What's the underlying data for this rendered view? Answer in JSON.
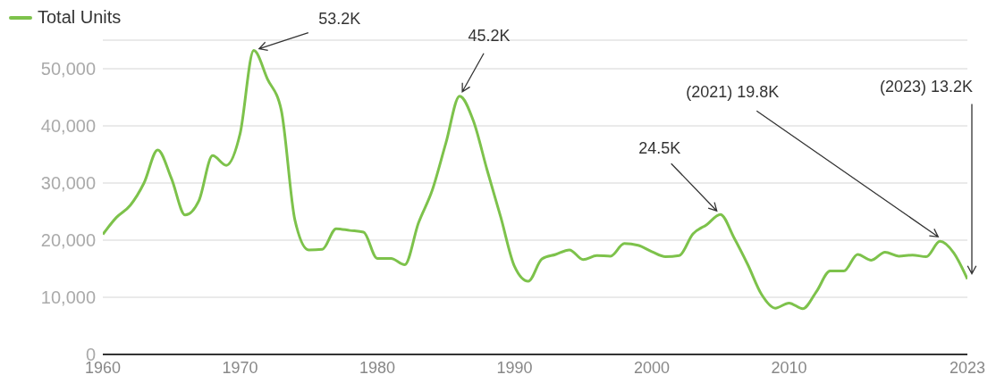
{
  "chart_data": {
    "type": "line",
    "x": [
      1960,
      1961,
      1962,
      1963,
      1964,
      1965,
      1966,
      1967,
      1968,
      1969,
      1970,
      1971,
      1972,
      1973,
      1974,
      1975,
      1976,
      1977,
      1978,
      1979,
      1980,
      1981,
      1982,
      1983,
      1984,
      1985,
      1986,
      1987,
      1988,
      1989,
      1990,
      1991,
      1992,
      1993,
      1994,
      1995,
      1996,
      1997,
      1998,
      1999,
      2000,
      2001,
      2002,
      2003,
      2004,
      2005,
      2006,
      2007,
      2008,
      2009,
      2010,
      2011,
      2012,
      2013,
      2014,
      2015,
      2016,
      2017,
      2018,
      2019,
      2020,
      2021,
      2022,
      2023
    ],
    "series": [
      {
        "name": "Total Units",
        "color": "#7dc24b",
        "values": [
          21000,
          24000,
          26100,
          30000,
          35800,
          30800,
          24400,
          26900,
          34800,
          33100,
          38600,
          53200,
          48200,
          42800,
          23500,
          18300,
          18400,
          22000,
          21700,
          21400,
          16800,
          16800,
          15700,
          23000,
          28700,
          37000,
          45200,
          40900,
          32300,
          24000,
          15400,
          12800,
          16700,
          17500,
          18300,
          16600,
          17300,
          17200,
          19400,
          19100,
          18000,
          17100,
          17300,
          21100,
          22700,
          24500,
          20400,
          15700,
          10500,
          8100,
          9000,
          8000,
          11000,
          14600,
          14600,
          17500,
          16500,
          17900,
          17200,
          17400,
          17100,
          19800,
          17800,
          13200
        ]
      }
    ],
    "xlim": [
      1960,
      2023
    ],
    "xticks": [
      1960,
      1970,
      1980,
      1990,
      2000,
      2010,
      2023
    ],
    "ylim": [
      0,
      55000
    ],
    "yticks": [
      0,
      {
        "value": 10000,
        "label": "10,000"
      },
      {
        "value": 20000,
        "label": "20,000"
      },
      {
        "value": 30000,
        "label": "30,000"
      },
      {
        "value": 40000,
        "label": "40,000"
      },
      {
        "value": 50000,
        "label": "50,000"
      }
    ],
    "grid": "y",
    "legend": "top left",
    "marker": "none",
    "line_style": "solid",
    "annotations": [
      {
        "text": "53.2K",
        "x": 1971,
        "y": 53200
      },
      {
        "text": "45.2K",
        "x": 1986,
        "y": 45200
      },
      {
        "text": "24.5K",
        "x": 2005,
        "y": 24500
      },
      {
        "text": "(2021) 19.8K",
        "x": 2021,
        "y": 19800
      },
      {
        "text": "(2023) 13.2K",
        "x": 2023,
        "y": 13200
      }
    ]
  }
}
